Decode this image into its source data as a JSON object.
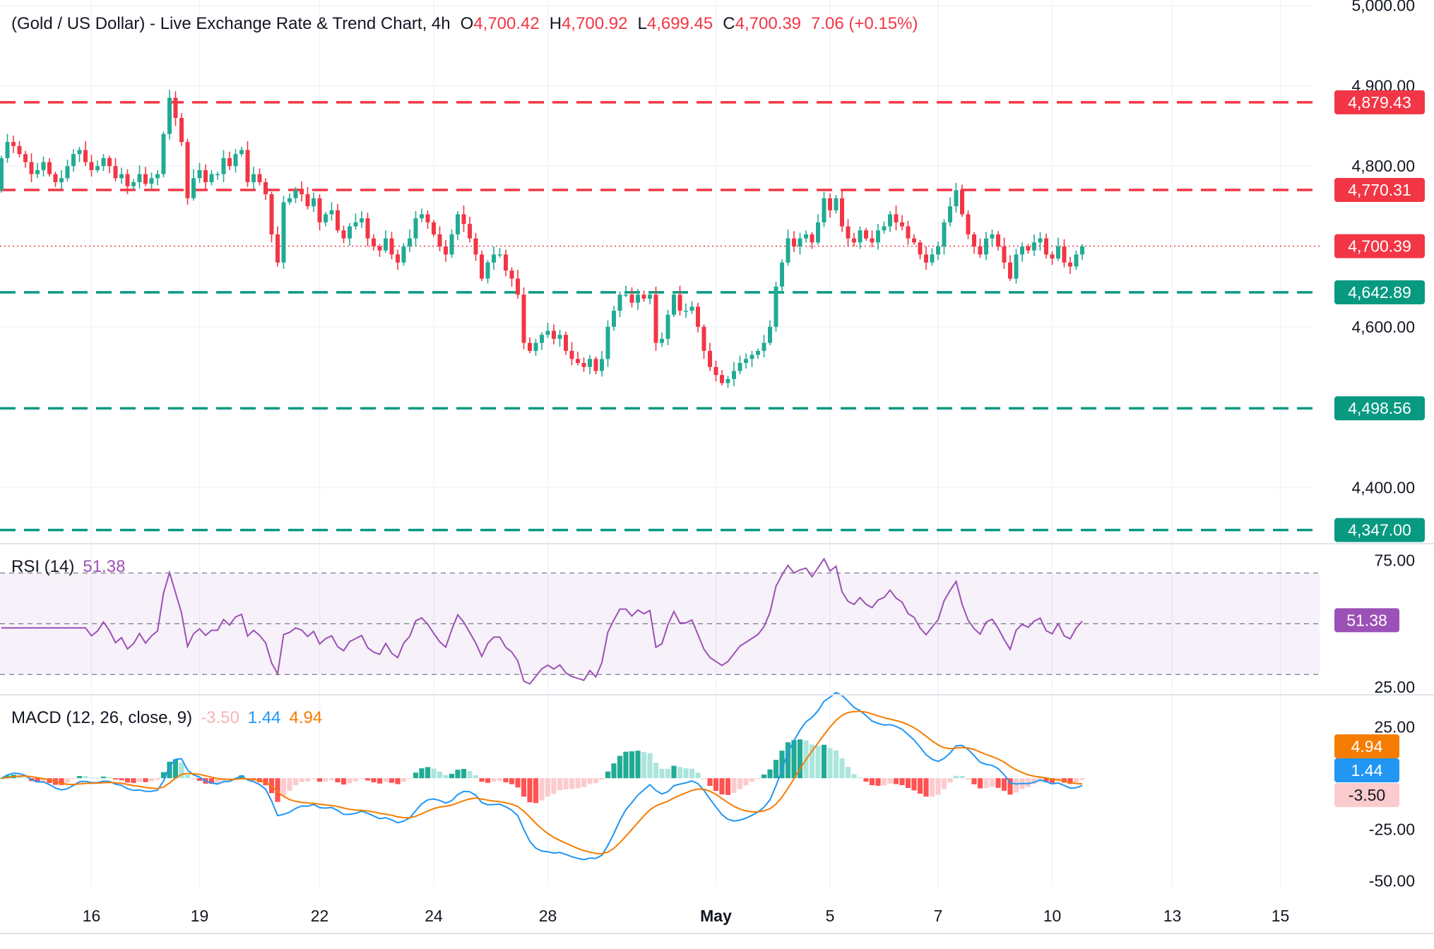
{
  "header": {
    "title": "(Gold / US Dollar) - Live Exchange Rate & Trend Chart",
    "interval": "4h",
    "o_label": "O",
    "o_value": "4,700.42",
    "h_label": "H",
    "h_value": "4,700.92",
    "l_label": "L",
    "l_value": "4,699.45",
    "c_label": "C",
    "c_value": "4,700.39",
    "change": "7.06 (+0.15%)"
  },
  "colors": {
    "up": "#22ab94",
    "down": "#f23645",
    "rsi": "#9c51b6",
    "macd": "#2196f3",
    "signal": "#f57c00",
    "grid": "#f0f3fa",
    "text": "#131722"
  },
  "price_axis": {
    "ticks": [
      "5,000.00",
      "4,900.00",
      "4,800.00",
      "4,600.00",
      "4,400.00"
    ],
    "tick_values": [
      5000,
      4900,
      4800,
      4600,
      4400
    ],
    "ylim": [
      4330,
      5005
    ]
  },
  "levels": [
    {
      "value": 4879.43,
      "label": "4,879.43",
      "type": "resistance"
    },
    {
      "value": 4770.31,
      "label": "4,770.31",
      "type": "resistance"
    },
    {
      "value": 4642.89,
      "label": "4,642.89",
      "type": "support"
    },
    {
      "value": 4498.56,
      "label": "4,498.56",
      "type": "support"
    },
    {
      "value": 4347.0,
      "label": "4,347.00",
      "type": "support"
    }
  ],
  "last_price": {
    "value": 4700.39,
    "label": "4,700.39"
  },
  "x_axis": {
    "labels": [
      "16",
      "19",
      "22",
      "24",
      "28",
      "May",
      "5",
      "7",
      "10",
      "13",
      "15"
    ],
    "label_index": [
      15,
      33,
      53,
      72,
      91,
      119,
      138,
      156,
      175,
      195,
      213
    ]
  },
  "chart_data": {
    "type": "candlestick",
    "interval": "4h",
    "ohlc_start": 4770,
    "close": [
      4810,
      4830,
      4825,
      4815,
      4805,
      4790,
      4795,
      4805,
      4790,
      4780,
      4785,
      4800,
      4815,
      4820,
      4805,
      4795,
      4800,
      4810,
      4800,
      4785,
      4790,
      4775,
      4780,
      4790,
      4778,
      4785,
      4790,
      4840,
      4885,
      4860,
      4830,
      4760,
      4785,
      4795,
      4780,
      4790,
      4790,
      4810,
      4800,
      4815,
      4820,
      4780,
      4790,
      4780,
      4765,
      4715,
      4680,
      4755,
      4760,
      4770,
      4765,
      4750,
      4760,
      4730,
      4740,
      4745,
      4720,
      4710,
      4725,
      4730,
      4735,
      4710,
      4700,
      4695,
      4710,
      4690,
      4680,
      4700,
      4710,
      4735,
      4740,
      4730,
      4715,
      4700,
      4690,
      4715,
      4740,
      4728,
      4710,
      4690,
      4660,
      4680,
      4690,
      4690,
      4670,
      4660,
      4640,
      4580,
      4570,
      4580,
      4590,
      4595,
      4585,
      4590,
      4570,
      4560,
      4555,
      4550,
      4560,
      4545,
      4560,
      4600,
      4620,
      4640,
      4640,
      4630,
      4640,
      4635,
      4640,
      4580,
      4585,
      4615,
      4640,
      4620,
      4620,
      4625,
      4600,
      4570,
      4550,
      4540,
      4530,
      4535,
      4545,
      4555,
      4560,
      4565,
      4570,
      4580,
      4600,
      4650,
      4680,
      4710,
      4700,
      4710,
      4715,
      4705,
      4730,
      4760,
      4745,
      4760,
      4725,
      4710,
      4705,
      4720,
      4710,
      4705,
      4720,
      4725,
      4740,
      4730,
      4725,
      4710,
      4705,
      4690,
      4680,
      4690,
      4700,
      4730,
      4750,
      4770,
      4740,
      4715,
      4700,
      4690,
      4710,
      4715,
      4700,
      4680,
      4660,
      4690,
      4700,
      4695,
      4705,
      4710,
      4690,
      4685,
      4700,
      4680,
      4675,
      4690,
      4700
    ],
    "title": "(Gold / US Dollar) - Live Exchange Rate & Trend Chart",
    "rsi": {
      "label": "RSI (14)",
      "value": "51.38",
      "value_num": 51.38,
      "levels": [
        70,
        50,
        30
      ],
      "ticks": [
        "75.00",
        "25.00"
      ],
      "tick_values": [
        75,
        25
      ],
      "ylim": [
        22,
        81
      ]
    },
    "macd": {
      "label": "MACD (12, 26, close, 9)",
      "histogram_value": "-3.50",
      "histogram_num": -3.5,
      "macd_value": "1.44",
      "macd_num": 1.44,
      "signal_value": "4.94",
      "signal_num": 4.94,
      "ticks": [
        "25.00",
        "-25.00",
        "-50.00"
      ],
      "tick_values": [
        25,
        -25,
        -50
      ],
      "ylim": [
        -53,
        40
      ]
    }
  }
}
